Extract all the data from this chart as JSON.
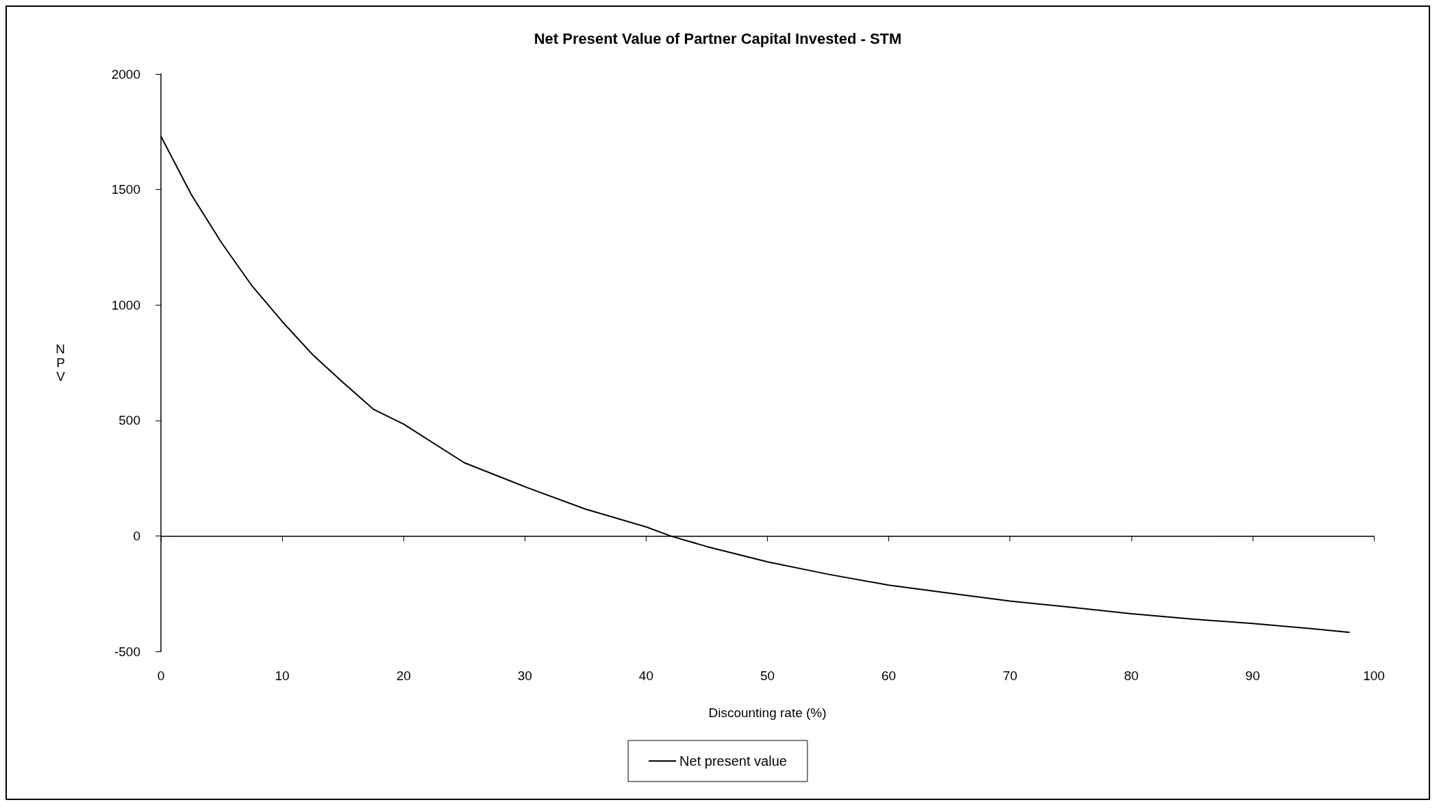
{
  "chart_data": {
    "type": "line",
    "title": "Net Present Value of Partner Capital Invested - STM",
    "xlabel": "Discounting rate (%)",
    "ylabel": "NPV",
    "x": [
      0,
      2.5,
      5,
      7.5,
      10,
      12.5,
      15,
      17.5,
      20,
      25,
      30,
      35,
      40,
      42,
      45,
      50,
      55,
      60,
      65,
      70,
      75,
      80,
      85,
      90,
      95,
      98
    ],
    "series": [
      {
        "name": "Net present value",
        "color": "#000000",
        "values": [
          1730,
          1478,
          1269,
          1083,
          928,
          785,
          665,
          549,
          484,
          317,
          213,
          116,
          39,
          0,
          -46,
          -112,
          -166,
          -213,
          -248,
          -282,
          -309,
          -337,
          -360,
          -379,
          -402,
          -418
        ]
      }
    ],
    "xlim": [
      0,
      100
    ],
    "xticks": [
      0,
      10,
      20,
      30,
      40,
      50,
      60,
      70,
      80,
      90,
      100
    ],
    "ylim": [
      -500,
      2000
    ],
    "yticks": [
      -500,
      0,
      500,
      1000,
      1500,
      2000
    ],
    "legend": "bottom",
    "marker": "none",
    "line_style": "solid"
  }
}
